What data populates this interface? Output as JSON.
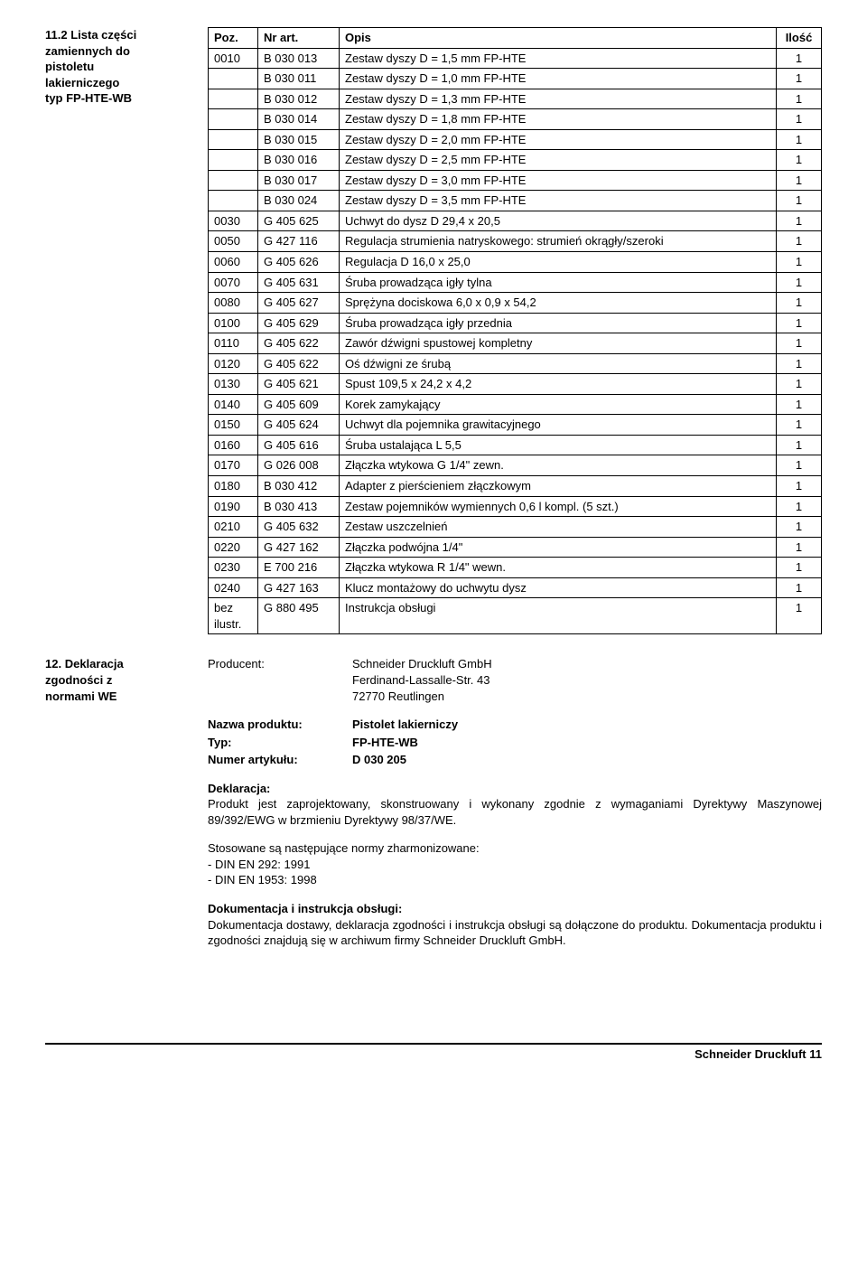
{
  "section1": {
    "num": "11.2",
    "title_lines": [
      "Lista części",
      "zamiennych do",
      "pistoletu",
      "lakierniczego",
      "typ FP-HTE-WB"
    ],
    "headers": {
      "poz": "Poz.",
      "art": "Nr art.",
      "opis": "Opis",
      "qty": "Ilość"
    },
    "rows": [
      {
        "poz": "0010",
        "art": "B 030 013",
        "opis": "Zestaw dyszy D = 1,5 mm FP-HTE",
        "qty": "1"
      },
      {
        "poz": "",
        "art": "B 030 011",
        "opis": "Zestaw dyszy D = 1,0 mm FP-HTE",
        "qty": "1"
      },
      {
        "poz": "",
        "art": "B 030 012",
        "opis": "Zestaw dyszy D = 1,3 mm FP-HTE",
        "qty": "1"
      },
      {
        "poz": "",
        "art": "B 030 014",
        "opis": "Zestaw dyszy D = 1,8 mm FP-HTE",
        "qty": "1"
      },
      {
        "poz": "",
        "art": "B 030 015",
        "opis": "Zestaw dyszy D = 2,0 mm FP-HTE",
        "qty": "1"
      },
      {
        "poz": "",
        "art": "B 030 016",
        "opis": "Zestaw dyszy D = 2,5 mm FP-HTE",
        "qty": "1"
      },
      {
        "poz": "",
        "art": "B 030 017",
        "opis": "Zestaw dyszy D = 3,0 mm FP-HTE",
        "qty": "1"
      },
      {
        "poz": "",
        "art": "B 030 024",
        "opis": "Zestaw dyszy D = 3,5 mm FP-HTE",
        "qty": "1"
      },
      {
        "poz": "0030",
        "art": "G 405 625",
        "opis": "Uchwyt do dysz D 29,4 x 20,5",
        "qty": "1"
      },
      {
        "poz": "0050",
        "art": "G 427 116",
        "opis": "Regulacja strumienia natryskowego: strumień okrągły/szeroki",
        "qty": "1"
      },
      {
        "poz": "0060",
        "art": "G 405 626",
        "opis": "Regulacja D 16,0 x 25,0",
        "qty": "1"
      },
      {
        "poz": "0070",
        "art": "G 405 631",
        "opis": "Śruba prowadząca igły tylna",
        "qty": "1"
      },
      {
        "poz": "0080",
        "art": "G 405 627",
        "opis": "Sprężyna dociskowa 6,0 x 0,9 x 54,2",
        "qty": "1"
      },
      {
        "poz": "0100",
        "art": "G 405 629",
        "opis": "Śruba prowadząca igły przednia",
        "qty": "1"
      },
      {
        "poz": "0110",
        "art": "G 405 622",
        "opis": "Zawór dźwigni spustowej kompletny",
        "qty": "1"
      },
      {
        "poz": "0120",
        "art": "G 405 622",
        "opis": "Oś dźwigni ze śrubą",
        "qty": "1"
      },
      {
        "poz": "0130",
        "art": "G 405 621",
        "opis": "Spust 109,5 x 24,2 x 4,2",
        "qty": "1"
      },
      {
        "poz": "0140",
        "art": "G 405 609",
        "opis": "Korek zamykający",
        "qty": "1"
      },
      {
        "poz": "0150",
        "art": "G 405 624",
        "opis": "Uchwyt dla pojemnika grawitacyjnego",
        "qty": "1"
      },
      {
        "poz": "0160",
        "art": "G 405 616",
        "opis": "Śruba ustalająca L 5,5",
        "qty": "1"
      },
      {
        "poz": "0170",
        "art": "G 026 008",
        "opis": "Złączka wtykowa G 1/4\" zewn.",
        "qty": "1"
      },
      {
        "poz": "0180",
        "art": "B 030 412",
        "opis": "Adapter z pierścieniem złączkowym",
        "qty": "1"
      },
      {
        "poz": "0190",
        "art": "B 030 413",
        "opis": "Zestaw pojemników wymiennych 0,6 l kompl. (5 szt.)",
        "qty": "1"
      },
      {
        "poz": "0210",
        "art": "G 405 632",
        "opis": "Zestaw uszczelnień",
        "qty": "1"
      },
      {
        "poz": "0220",
        "art": "G 427 162",
        "opis": "Złączka podwójna 1/4\"",
        "qty": "1"
      },
      {
        "poz": "0230",
        "art": "E 700 216",
        "opis": "Złączka wtykowa R 1/4\" wewn.",
        "qty": "1"
      },
      {
        "poz": "0240",
        "art": "G 427 163",
        "opis": "Klucz montażowy do uchwytu dysz",
        "qty": "1"
      },
      {
        "poz": "bez ilustr.",
        "art": "G 880 495",
        "opis": "Instrukcja obsługi",
        "qty": "1"
      }
    ]
  },
  "section2": {
    "num": "12.",
    "title_lines": [
      "Deklaracja",
      "zgodności z",
      "normami WE"
    ],
    "producer_label": "Producent:",
    "producer_lines": [
      "Schneider Druckluft GmbH",
      "Ferdinand-Lassalle-Str. 43",
      "72770 Reutlingen"
    ],
    "product_rows": [
      {
        "k": "Nazwa produktu:",
        "v": "Pistolet lakierniczy"
      },
      {
        "k": "Typ:",
        "v": "FP-HTE-WB"
      },
      {
        "k": "Numer artykułu:",
        "v": "D 030 205"
      }
    ],
    "decl_head": "Deklaracja:",
    "decl_body": "Produkt jest zaprojektowany, skonstruowany i wykonany zgodnie z wymaganiami Dyrektywy Maszynowej 89/392/EWG w brzmieniu Dyrektywy 98/37/WE.",
    "norms_head": "Stosowane są następujące normy zharmonizowane:",
    "norms": [
      "- DIN EN 292: 1991",
      "- DIN EN 1953: 1998"
    ],
    "doc_head": "Dokumentacja i instrukcja obsługi:",
    "doc_body": "Dokumentacja dostawy, deklaracja zgodności i instrukcja obsługi są dołączone do produktu. Dokumentacja produktu i zgodności znajdują się w archiwum firmy Schneider Druckluft GmbH."
  },
  "footer": "Schneider Druckluft 11"
}
